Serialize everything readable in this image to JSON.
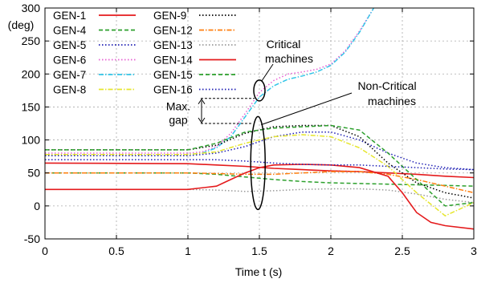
{
  "chart_data": {
    "type": "line",
    "title": "",
    "xlabel": "Time t (s)",
    "ylabel": "(deg)",
    "xlim": [
      0,
      3
    ],
    "ylim": [
      -50,
      300
    ],
    "xticks": [
      0,
      0.5,
      1,
      1.5,
      2,
      2.5,
      3
    ],
    "xtick_labels": [
      "0",
      "0.5",
      "1",
      "1.5",
      "2",
      "2.5",
      "3"
    ],
    "yticks": [
      -50,
      0,
      50,
      100,
      150,
      200,
      250,
      300
    ],
    "ytick_labels": [
      "-50",
      "0",
      "50",
      "100",
      "150",
      "200",
      "250",
      "300"
    ],
    "grid": true,
    "legend_position": "top-left",
    "series": [
      {
        "name": "GEN-1",
        "color": "#e41a1c",
        "dash": "solid",
        "x": [
          0,
          1,
          1.2,
          1.4,
          1.6,
          1.8,
          2,
          2.2,
          2.4,
          2.6,
          2.8,
          3
        ],
        "y": [
          65,
          64,
          62,
          60,
          57,
          55,
          53,
          52,
          50,
          48,
          45,
          43
        ]
      },
      {
        "name": "GEN-4",
        "color": "#2ca02c",
        "dash": "dashed",
        "x": [
          0,
          1,
          1.2,
          1.4,
          1.6,
          1.8,
          2,
          2.2,
          2.4,
          2.6,
          2.8,
          3
        ],
        "y": [
          50,
          50,
          48,
          44,
          40,
          37,
          35,
          34,
          33,
          32,
          31,
          30
        ]
      },
      {
        "name": "GEN-5",
        "color": "#1f1fb4",
        "dash": "dotted",
        "x": [
          0,
          1,
          1.2,
          1.4,
          1.6,
          1.8,
          2,
          2.2,
          2.4,
          2.6,
          2.8,
          3
        ],
        "y": [
          76,
          76,
          80,
          90,
          105,
          112,
          112,
          100,
          80,
          65,
          58,
          55
        ]
      },
      {
        "name": "GEN-6",
        "color": "#e75fd3",
        "dash": "dotted",
        "x": [
          0,
          1,
          1.1,
          1.2,
          1.3,
          1.4,
          1.5,
          1.6,
          1.7,
          1.8,
          1.9,
          2,
          2.1,
          2.2,
          2.3
        ],
        "y": [
          80,
          80,
          82,
          90,
          110,
          140,
          172,
          190,
          200,
          203,
          207,
          215,
          235,
          265,
          300
        ]
      },
      {
        "name": "GEN-7",
        "color": "#33c5e8",
        "dash": "dashdot",
        "x": [
          0,
          1,
          1.1,
          1.2,
          1.3,
          1.4,
          1.5,
          1.6,
          1.7,
          1.8,
          1.9,
          2,
          2.1,
          2.2,
          2.3
        ],
        "y": [
          78,
          78,
          80,
          88,
          105,
          135,
          165,
          182,
          192,
          197,
          203,
          213,
          233,
          263,
          300
        ]
      },
      {
        "name": "GEN-8",
        "color": "#e6e62e",
        "dash": "dashdot",
        "x": [
          0,
          1,
          1.2,
          1.4,
          1.6,
          1.8,
          2,
          2.2,
          2.4,
          2.6,
          2.8,
          3
        ],
        "y": [
          78,
          78,
          82,
          95,
          105,
          108,
          105,
          88,
          60,
          20,
          -15,
          5
        ]
      },
      {
        "name": "GEN-9",
        "color": "#000000",
        "dash": "dotted",
        "x": [
          0,
          1,
          1.2,
          1.4,
          1.6,
          1.8,
          2,
          2.2,
          2.4,
          2.6,
          2.8,
          3
        ],
        "y": [
          85,
          85,
          92,
          110,
          120,
          122,
          122,
          105,
          65,
          35,
          20,
          12
        ]
      },
      {
        "name": "GEN-12",
        "color": "#ff7f0e",
        "dash": "dashdot",
        "x": [
          0,
          1,
          1.2,
          1.4,
          1.6,
          1.8,
          2,
          2.2,
          2.4,
          2.6,
          2.8,
          3
        ],
        "y": [
          50,
          50,
          49,
          48,
          48,
          50,
          52,
          52,
          48,
          40,
          30,
          20
        ]
      },
      {
        "name": "GEN-13",
        "color": "#999999",
        "dash": "dotted",
        "x": [
          0,
          1,
          1.2,
          1.4,
          1.6,
          1.8,
          2,
          2.2,
          2.4,
          2.6,
          2.8,
          3
        ],
        "y": [
          25,
          25,
          24,
          22,
          23,
          25,
          26,
          26,
          24,
          18,
          10,
          5
        ]
      },
      {
        "name": "GEN-14",
        "color": "#e41a1c",
        "dash": "solid",
        "x": [
          0,
          1,
          1.2,
          1.3,
          1.4,
          1.5,
          1.6,
          1.8,
          2,
          2.2,
          2.4,
          2.5,
          2.6,
          2.7,
          2.8,
          3
        ],
        "y": [
          25,
          25,
          30,
          40,
          50,
          58,
          62,
          63,
          62,
          58,
          45,
          20,
          -10,
          -25,
          -30,
          -35
        ]
      },
      {
        "name": "GEN-15",
        "color": "#2ca02c",
        "dash": "dashed",
        "x": [
          0,
          1,
          1.2,
          1.4,
          1.6,
          1.8,
          2,
          2.2,
          2.4,
          2.6,
          2.8,
          3
        ],
        "y": [
          85,
          85,
          95,
          112,
          118,
          120,
          122,
          115,
          80,
          40,
          0,
          5
        ]
      },
      {
        "name": "GEN-16",
        "color": "#1f1fb4",
        "dash": "dotted",
        "x": [
          0,
          1,
          1.2,
          1.4,
          1.6,
          1.8,
          2,
          2.2,
          2.4,
          2.6,
          2.8,
          3
        ],
        "y": [
          70,
          70,
          70,
          68,
          65,
          63,
          62,
          62,
          60,
          58,
          56,
          55
        ]
      }
    ],
    "annotations": [
      {
        "text": "Critical",
        "text2": "machines"
      },
      {
        "text": "Non-Critical",
        "text2": "machines"
      },
      {
        "text": "Max.",
        "text2": "gap"
      }
    ]
  }
}
